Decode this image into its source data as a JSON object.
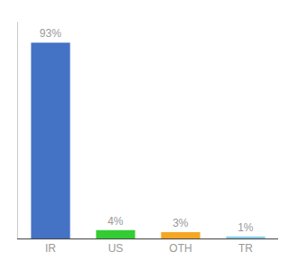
{
  "chart_data": {
    "type": "bar",
    "categories": [
      "IR",
      "US",
      "OTH",
      "TR"
    ],
    "values": [
      93,
      4,
      3,
      1
    ],
    "value_labels": [
      "93%",
      "4%",
      "3%",
      "1%"
    ],
    "colors": [
      "#4472C4",
      "#33CC33",
      "#F5A623",
      "#87CEEB"
    ],
    "ylim": [
      0,
      103
    ],
    "grid": false,
    "data_labels": true,
    "tick_labels": "x"
  }
}
